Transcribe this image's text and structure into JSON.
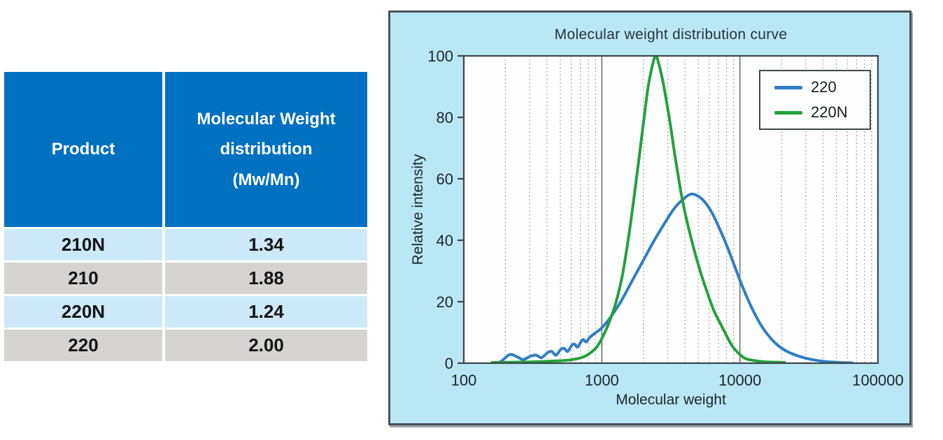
{
  "table": {
    "header": {
      "product": "Product",
      "mwd_lines": [
        "Molecular Weight",
        "distribution",
        "(Mw/Mn)"
      ]
    },
    "rows": [
      {
        "product": "210N",
        "value": "1.34"
      },
      {
        "product": "210",
        "value": "1.88"
      },
      {
        "product": "220N",
        "value": "1.24"
      },
      {
        "product": "220",
        "value": "2.00"
      }
    ],
    "colors": {
      "header_bg": "#0070c0",
      "header_text": "#ffffff",
      "row_alt_blue": "#cde9f8",
      "row_alt_gray": "#d5d4d2",
      "cell_text": "#141414"
    }
  },
  "chart": {
    "panel_bg": "#b9e8f5",
    "panel_border": "#49535b",
    "plot_bg": "#fefefe",
    "plot_border": "#3c4649",
    "grid_minor_color": "#a39e96",
    "grid_major_color": "#6b7476",
    "tick_text_color": "#1c2727"
  },
  "chart_data": {
    "type": "line",
    "title": "Molecular weight distribution curve",
    "xlabel": "Molecular weight",
    "ylabel": "Relative intensity",
    "x_scale": "log",
    "xlim": [
      100,
      100000
    ],
    "ylim": [
      0,
      100
    ],
    "x_ticks": [
      100,
      1000,
      10000,
      100000
    ],
    "y_ticks": [
      0,
      20,
      40,
      60,
      80,
      100
    ],
    "grid": "dotted minor vertical gridlines each log decade; solid vertical lines at 1000 and 10000",
    "legend_position": "top-right",
    "series": [
      {
        "name": "220",
        "color": "#2f7dc5",
        "points": [
          [
            160,
            0
          ],
          [
            185,
            0.5
          ],
          [
            215,
            2.8
          ],
          [
            245,
            2.0
          ],
          [
            270,
            1.2
          ],
          [
            305,
            2.3
          ],
          [
            335,
            2.6
          ],
          [
            365,
            1.8
          ],
          [
            405,
            3.4
          ],
          [
            435,
            3.8
          ],
          [
            465,
            2.6
          ],
          [
            505,
            4.5
          ],
          [
            535,
            4.8
          ],
          [
            565,
            3.8
          ],
          [
            605,
            5.8
          ],
          [
            635,
            6.2
          ],
          [
            665,
            5.2
          ],
          [
            705,
            6.9
          ],
          [
            735,
            7.7
          ],
          [
            770,
            6.9
          ],
          [
            810,
            8.2
          ],
          [
            860,
            9.2
          ],
          [
            920,
            10.2
          ],
          [
            1000,
            11.5
          ],
          [
            1150,
            14.8
          ],
          [
            1350,
            19.5
          ],
          [
            1600,
            25.5
          ],
          [
            2000,
            33.5
          ],
          [
            2400,
            40
          ],
          [
            2800,
            45
          ],
          [
            3300,
            50
          ],
          [
            3800,
            53
          ],
          [
            4400,
            55
          ],
          [
            5000,
            54.3
          ],
          [
            5600,
            52.3
          ],
          [
            6300,
            48.8
          ],
          [
            7000,
            44.5
          ],
          [
            8000,
            38.5
          ],
          [
            9000,
            32.5
          ],
          [
            10000,
            27
          ],
          [
            11500,
            20.5
          ],
          [
            13000,
            15.5
          ],
          [
            15000,
            10.8
          ],
          [
            18000,
            6.6
          ],
          [
            22000,
            3.8
          ],
          [
            27000,
            2.2
          ],
          [
            33000,
            1.2
          ],
          [
            42000,
            0.5
          ],
          [
            55000,
            0.2
          ],
          [
            65000,
            0.1
          ]
        ]
      },
      {
        "name": "220N",
        "color": "#23a13c",
        "points": [
          [
            160,
            0.2
          ],
          [
            300,
            0.4
          ],
          [
            450,
            0.7
          ],
          [
            600,
            1.1
          ],
          [
            750,
            2.2
          ],
          [
            900,
            4.8
          ],
          [
            1000,
            8
          ],
          [
            1100,
            12
          ],
          [
            1250,
            19
          ],
          [
            1400,
            28
          ],
          [
            1550,
            40
          ],
          [
            1700,
            53
          ],
          [
            1850,
            66
          ],
          [
            2000,
            78
          ],
          [
            2150,
            89
          ],
          [
            2300,
            96
          ],
          [
            2450,
            100
          ],
          [
            2600,
            97
          ],
          [
            2800,
            90.5
          ],
          [
            3100,
            79
          ],
          [
            3400,
            67
          ],
          [
            3800,
            54
          ],
          [
            4300,
            43
          ],
          [
            5000,
            32
          ],
          [
            5700,
            24
          ],
          [
            6500,
            17
          ],
          [
            7300,
            12.5
          ],
          [
            8200,
            8
          ],
          [
            9000,
            5
          ],
          [
            10000,
            2.8
          ],
          [
            11000,
            1.5
          ],
          [
            12500,
            0.9
          ],
          [
            14500,
            0.5
          ],
          [
            17000,
            0.35
          ],
          [
            21000,
            0.25
          ]
        ]
      }
    ]
  }
}
